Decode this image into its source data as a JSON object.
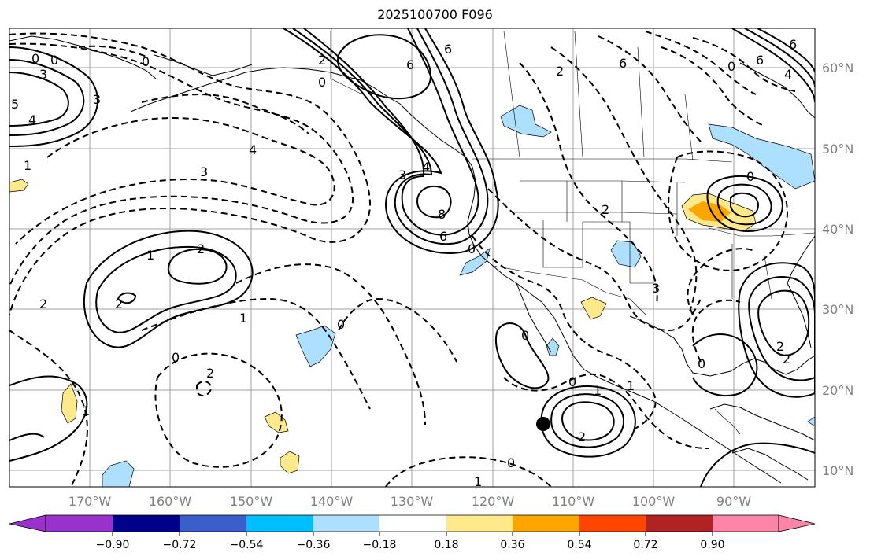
{
  "title": "2025100700 F096",
  "map": {
    "lon_labels": [
      "170°W",
      "160°W",
      "150°W",
      "140°W",
      "130°W",
      "120°W",
      "110°W",
      "100°W",
      "90°W"
    ],
    "lat_labels": [
      "60°N",
      "50°N",
      "40°N",
      "30°N",
      "20°N",
      "10°N"
    ],
    "contour_labels": [
      "0",
      "0",
      "3",
      "5",
      "4",
      "3",
      "1",
      "4",
      "3",
      "0",
      "6",
      "2",
      "0",
      "6",
      "6",
      "4",
      "3",
      "8",
      "6",
      "1",
      "2",
      "2",
      "2",
      "1",
      "2",
      "0",
      "0",
      "2",
      "0",
      "0",
      "1",
      "1",
      "0",
      "2",
      "2",
      "0",
      "3",
      "0",
      "1",
      "4",
      "6",
      "6",
      "2",
      "2",
      "0",
      "0",
      "1"
    ],
    "marker": "black-dot"
  },
  "colorbar": {
    "colors": [
      "#9932CC",
      "#00008B",
      "#3A5FCD",
      "#00BFFF",
      "#ADDFFF",
      "#FFFFFF",
      "#FFE98A",
      "#FFA500",
      "#FF4500",
      "#B22222",
      "#FF85A8"
    ],
    "ticks": [
      "−0.90",
      "−0.72",
      "−0.54",
      "−0.36",
      "−0.18",
      "0.18",
      "0.36",
      "0.54",
      "0.72",
      "0.90"
    ]
  }
}
